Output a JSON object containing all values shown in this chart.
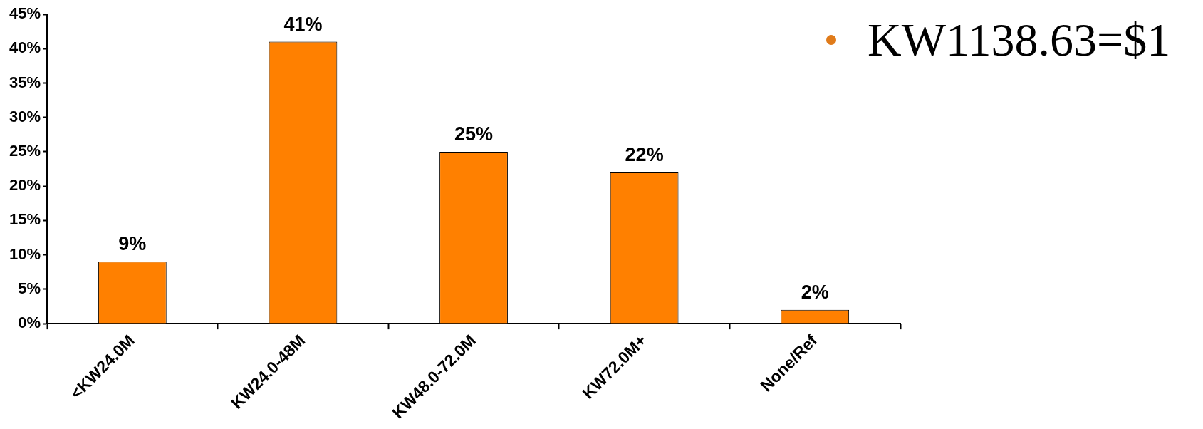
{
  "chart_data": {
    "type": "bar",
    "categories": [
      "<KW24.0M",
      "KW24.0-48M",
      "KW48.0-72.0M",
      "KW72.0M+",
      "None/Ref"
    ],
    "values": [
      9,
      41,
      25,
      22,
      2
    ],
    "color": "#ff8000",
    "ylim": [
      0,
      45
    ],
    "yticks": [
      {
        "value": 0,
        "label": "0%"
      },
      {
        "value": 5,
        "label": "5%"
      },
      {
        "value": 10,
        "label": "10%"
      },
      {
        "value": 15,
        "label": "15%"
      },
      {
        "value": 20,
        "label": "20%"
      },
      {
        "value": 25,
        "label": "25%"
      },
      {
        "value": 30,
        "label": "30%"
      },
      {
        "value": 35,
        "label": "35%"
      },
      {
        "value": 40,
        "label": "40%"
      },
      {
        "value": 45,
        "label": "45%"
      }
    ],
    "value_labels": [
      "9%",
      "41%",
      "25%",
      "22%",
      "2%"
    ],
    "annotations": [
      "KW1138.63=$1"
    ],
    "grid": false,
    "legend": false
  }
}
